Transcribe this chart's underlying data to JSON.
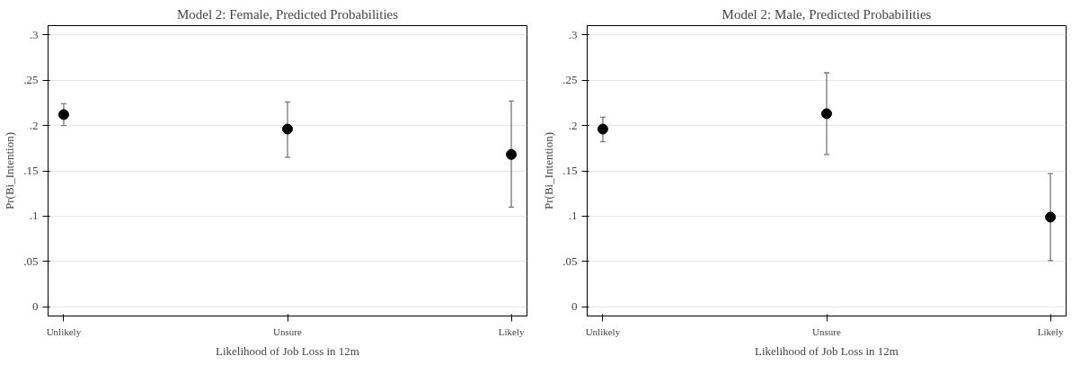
{
  "chart_data": [
    {
      "type": "scatter",
      "title": "Model 2: Female, Predicted Probabilities",
      "xlabel": "Likelihood of Job Loss in 12m",
      "ylabel": "Pr(Bi_Intention)",
      "categories": [
        "Unlikely",
        "Unsure",
        "Likely"
      ],
      "series": [
        {
          "color": "#000000",
          "values": [
            0.212,
            0.196,
            0.168
          ],
          "errors": [
            [
              0.2,
              0.224
            ],
            [
              0.165,
              0.226
            ],
            [
              0.11,
              0.227
            ]
          ]
        }
      ],
      "ylim": [
        -0.01,
        0.31
      ],
      "yticks": [
        0,
        {
          "value": 0.05,
          "label": ".05"
        },
        {
          "value": 0.1,
          "label": ".1"
        },
        {
          "value": 0.15,
          "label": ".15"
        },
        {
          "value": 0.2,
          "label": ".2"
        },
        {
          "value": 0.25,
          "label": ".25"
        },
        {
          "value": 0.3,
          "label": ".3"
        }
      ],
      "grid": "y",
      "marker": "circle"
    },
    {
      "type": "scatter",
      "title": "Model 2: Male, Predicted Probabilities",
      "xlabel": "Likelihood of Job Loss in 12m",
      "ylabel": "Pr(Bi_Intention)",
      "categories": [
        "Unlikely",
        "Unsure",
        "Likely"
      ],
      "series": [
        {
          "color": "#000000",
          "values": [
            0.196,
            0.213,
            0.099
          ],
          "errors": [
            [
              0.182,
              0.209
            ],
            [
              0.168,
              0.258
            ],
            [
              0.051,
              0.147
            ]
          ]
        }
      ],
      "ylim": [
        -0.01,
        0.31
      ],
      "yticks": [
        0,
        {
          "value": 0.05,
          "label": ".05"
        },
        {
          "value": 0.1,
          "label": ".1"
        },
        {
          "value": 0.15,
          "label": ".15"
        },
        {
          "value": 0.2,
          "label": ".2"
        },
        {
          "value": 0.25,
          "label": ".25"
        },
        {
          "value": 0.3,
          "label": ".3"
        }
      ],
      "grid": "y",
      "marker": "circle"
    }
  ]
}
